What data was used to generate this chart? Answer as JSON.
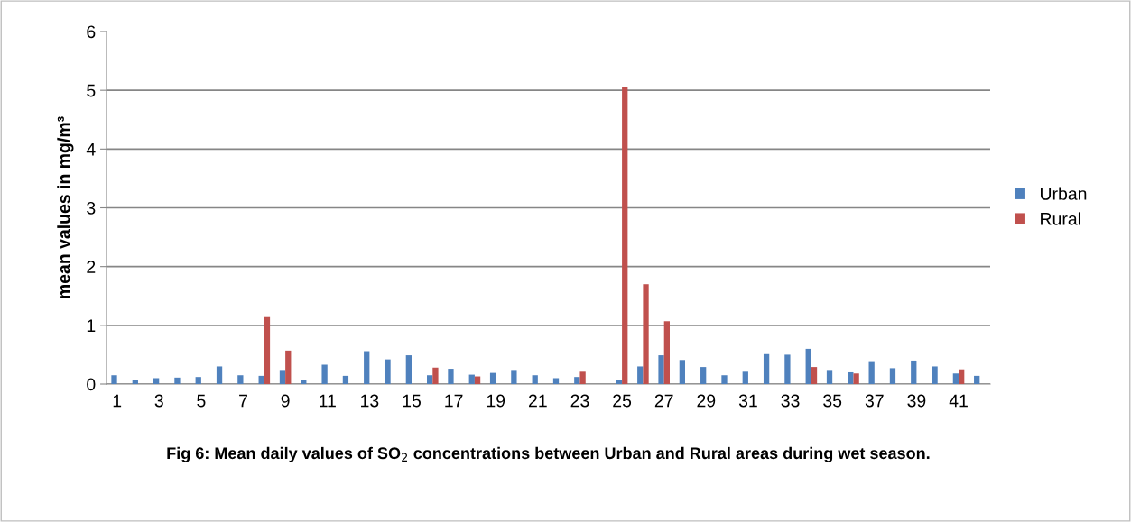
{
  "chart_data": {
    "type": "bar",
    "title": "Fig 6: Mean daily values of SO$_{2}$ concentrations between Urban and Rural areas during wet season.",
    "ylabel": "mean values in mg/m³",
    "categories": [
      "1",
      null,
      "3",
      null,
      "5",
      null,
      "7",
      null,
      "9",
      null,
      "11",
      null,
      "13",
      null,
      "15",
      null,
      "17",
      null,
      "19",
      null,
      "21",
      null,
      "23",
      null,
      "25",
      null,
      "27",
      null,
      "29",
      null,
      "31",
      null,
      "33",
      null,
      "35",
      null,
      "37",
      null,
      "39",
      null,
      "41",
      null
    ],
    "series": [
      {
        "name": "Urban",
        "color": "#4f81bd",
        "values": [
          0.15,
          0.07,
          0.1,
          0.11,
          0.12,
          0.3,
          0.15,
          0.14,
          0.24,
          0.07,
          0.33,
          0.14,
          0.56,
          0.42,
          0.49,
          0.15,
          0.26,
          0.16,
          0.19,
          0.24,
          0.15,
          0.1,
          0.12,
          null,
          0.07,
          0.3,
          0.49,
          0.41,
          0.29,
          0.15,
          0.21,
          0.51,
          0.5,
          0.6,
          0.24,
          0.2,
          0.39,
          0.27,
          0.4,
          0.3,
          0.18,
          0.14
        ]
      },
      {
        "name": "Rural",
        "color": "#c0504d",
        "values": [
          null,
          null,
          null,
          null,
          null,
          null,
          null,
          1.14,
          0.57,
          null,
          null,
          null,
          null,
          null,
          null,
          0.28,
          null,
          0.13,
          null,
          null,
          null,
          null,
          0.21,
          null,
          5.05,
          1.7,
          1.07,
          null,
          null,
          null,
          null,
          null,
          null,
          0.29,
          null,
          0.18,
          null,
          null,
          null,
          null,
          0.25,
          null
        ]
      }
    ],
    "ylim": [
      0,
      6
    ],
    "yticks": [
      0,
      1,
      2,
      3,
      4,
      5,
      6
    ],
    "grid": "y",
    "legend": "right"
  }
}
